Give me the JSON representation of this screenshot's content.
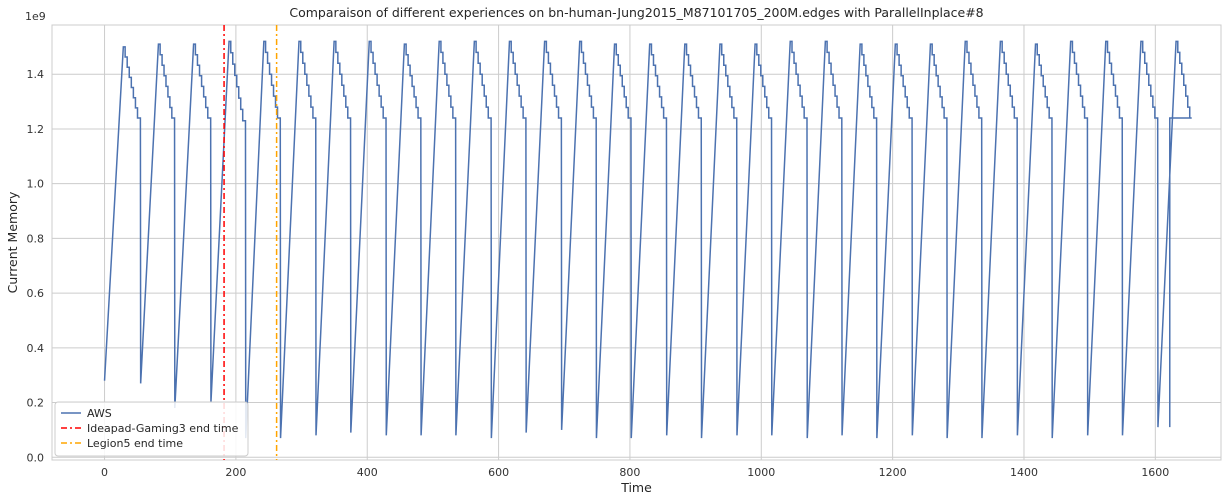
{
  "chart_data": {
    "type": "line",
    "title": "Comparaison of different experiences on bn-human-Jung2015_M87101705_200M.edges with ParallelInplace#8",
    "xlabel": "Time",
    "ylabel": "Current Memory",
    "y_scale_label": "1e9",
    "xlim": [
      -80,
      1700
    ],
    "ylim": [
      -0.01,
      1.58
    ],
    "x_ticks": [
      0,
      200,
      400,
      600,
      800,
      1000,
      1200,
      1400,
      1600
    ],
    "y_ticks": [
      0.0,
      0.2,
      0.4,
      0.6,
      0.8,
      1.0,
      1.2,
      1.4
    ],
    "x_tick_labels": [
      "0",
      "200",
      "400",
      "600",
      "800",
      "1000",
      "1200",
      "1400",
      "1600"
    ],
    "y_tick_labels": [
      "0.0",
      "0.2",
      "0.4",
      "0.6",
      "0.8",
      "1.0",
      "1.2",
      "1.4"
    ],
    "grid": true,
    "legend_position": "lower-left",
    "cycle_starts": [
      0,
      55,
      107,
      162,
      215,
      268,
      322,
      375,
      429,
      482,
      535,
      589,
      642,
      696,
      749,
      802,
      856,
      909,
      963,
      1016,
      1070,
      1123,
      1176,
      1230,
      1283,
      1336,
      1390,
      1443,
      1497,
      1550,
      1604
    ],
    "cycle_peaks": [
      1.5,
      1.51,
      1.51,
      1.52,
      1.52,
      1.52,
      1.52,
      1.52,
      1.51,
      1.52,
      1.52,
      1.52,
      1.52,
      1.52,
      1.51,
      1.51,
      1.51,
      1.51,
      1.51,
      1.52,
      1.52,
      1.51,
      1.51,
      1.51,
      1.52,
      1.52,
      1.51,
      1.52,
      1.52,
      1.52,
      1.52
    ],
    "cycle_ends": [
      1.24,
      1.24,
      1.24,
      1.23,
      1.24,
      1.24,
      1.24,
      1.24,
      1.24,
      1.24,
      1.24,
      1.24,
      1.24,
      1.24,
      1.24,
      1.24,
      1.24,
      1.24,
      1.24,
      1.24,
      1.24,
      1.24,
      1.24,
      1.24,
      1.24,
      1.24,
      1.24,
      1.24,
      1.24,
      1.24,
      1.24
    ],
    "cycle_troughs": [
      0.28,
      0.27,
      0.18,
      0.2,
      0.07,
      0.07,
      0.08,
      0.09,
      0.08,
      0.08,
      0.08,
      0.07,
      0.09,
      0.1,
      0.07,
      0.07,
      0.08,
      0.07,
      0.08,
      0.08,
      0.07,
      0.08,
      0.07,
      0.08,
      0.07,
      0.07,
      0.08,
      0.07,
      0.08,
      0.08,
      0.11
    ],
    "final_time": 1622,
    "final_value": 0.11,
    "series": [
      {
        "name": "AWS",
        "color": "#4c72b0",
        "style": "solid"
      }
    ],
    "vlines": [
      {
        "name": "Ideapad-Gaming3 end time",
        "x": 182,
        "color": "#ff0000",
        "style": "dashdot"
      },
      {
        "name": "Legion5 end time",
        "x": 262,
        "color": "#ffa500",
        "style": "dashdot"
      }
    ]
  }
}
